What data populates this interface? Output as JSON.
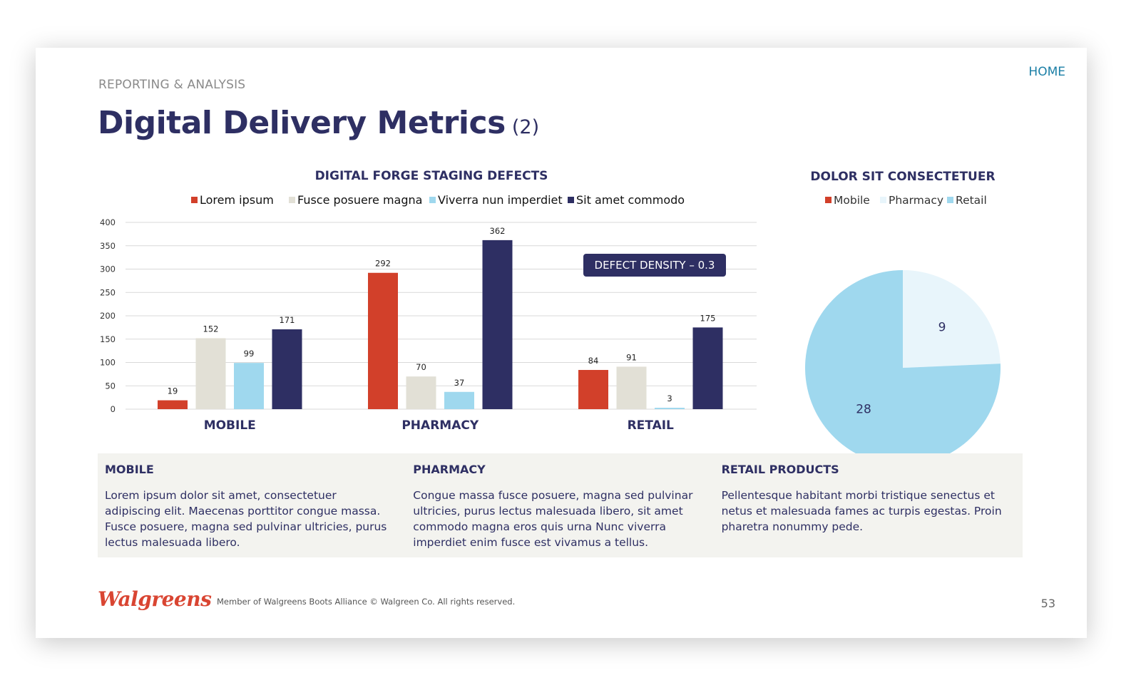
{
  "header": {
    "eyebrow": "REPORTING & ANALYSIS",
    "home_label": "HOME",
    "title_main": "Digital Delivery Metrics",
    "title_sub": "(2)"
  },
  "colors": {
    "navy": "#2e2f63",
    "red": "#d2402a",
    "beige": "#e2e0d6",
    "light_blue": "#9fd8ee",
    "pale_blue": "#e8f5fb",
    "band": "#f3f3ef"
  },
  "chart_data": [
    {
      "type": "bar",
      "title": "DIGITAL FORGE STAGING DEFECTS",
      "categories": [
        "MOBILE",
        "PHARMACY",
        "RETAIL"
      ],
      "series": [
        {
          "name": "Lorem ipsum",
          "color": "#d2402a",
          "values": [
            19,
            292,
            84
          ]
        },
        {
          "name": "Fusce posuere magna",
          "color": "#e2e0d6",
          "values": [
            152,
            70,
            91
          ]
        },
        {
          "name": "Viverra nun imperdiet",
          "color": "#9fd8ee",
          "values": [
            99,
            37,
            3
          ]
        },
        {
          "name": "Sit amet commodo",
          "color": "#2e2f63",
          "values": [
            171,
            362,
            175
          ]
        }
      ],
      "ylim": [
        0,
        400
      ],
      "yticks": [
        0,
        50,
        100,
        150,
        200,
        250,
        300,
        350,
        400
      ],
      "grid": true,
      "legend": "top",
      "annotation": "DEFECT DENSITY – 0.3"
    },
    {
      "type": "pie",
      "title": "DOLOR SIT CONSECTETUER",
      "labels": [
        "Mobile",
        "Pharmacy",
        "Retail"
      ],
      "values": [
        0,
        9,
        28
      ],
      "colors": [
        "#d2402a",
        "#e8f5fb",
        "#9fd8ee"
      ],
      "legend": "top"
    }
  ],
  "info": [
    {
      "heading": "MOBILE",
      "body": "Lorem ipsum dolor sit amet, consectetuer adipiscing elit. Maecenas porttitor congue massa. Fusce posuere, magna sed pulvinar ultricies, purus lectus malesuada libero."
    },
    {
      "heading": "PHARMACY",
      "body": "Congue massa fusce posuere, magna sed pulvinar ultricies, purus lectus malesuada libero, sit amet commodo magna eros quis urna Nunc viverra imperdiet enim fusce est vivamus a tellus."
    },
    {
      "heading": "RETAIL PRODUCTS",
      "body": "Pellentesque habitant morbi tristique senectus et netus et malesuada fames ac turpis egestas. Proin pharetra nonummy pede."
    }
  ],
  "footer": {
    "logo": "Walgreens",
    "text": "Member of Walgreens Boots Alliance © Walgreen Co. All rights reserved.",
    "page": "53"
  }
}
